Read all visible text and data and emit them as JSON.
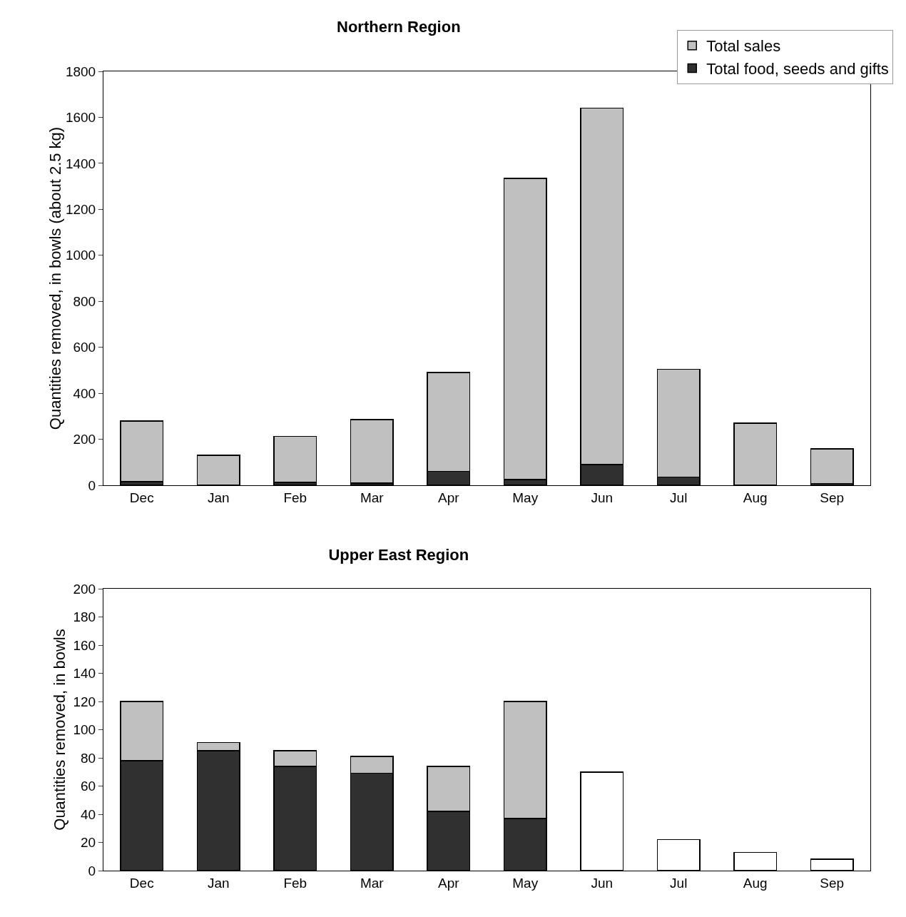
{
  "chart_data": [
    {
      "type": "bar",
      "title": "Northern Region",
      "ylabel": "Quantities removed, in bowls (about 2.5 kg)",
      "categories": [
        "Dec",
        "Jan",
        "Feb",
        "Mar",
        "Apr",
        "May",
        "Jun",
        "Jul",
        "Aug",
        "Sep"
      ],
      "stacked": true,
      "series": [
        {
          "name": "Total food, seeds and gifts",
          "color": "#303030",
          "values": [
            15,
            0,
            12,
            10,
            60,
            25,
            90,
            35,
            0,
            8
          ]
        },
        {
          "name": "Total sales",
          "color": "#c0c0c0",
          "values": [
            265,
            130,
            200,
            275,
            430,
            1310,
            1550,
            470,
            270,
            150
          ]
        }
      ],
      "ylim": [
        0,
        1800
      ],
      "yticks": [
        0,
        200,
        400,
        600,
        800,
        1000,
        1200,
        1400,
        1600,
        1800
      ],
      "grid": false,
      "legend": "top right"
    },
    {
      "type": "bar",
      "title": "Upper East Region",
      "ylabel": "Quantities removed, in bowls",
      "categories": [
        "Dec",
        "Jan",
        "Feb",
        "Mar",
        "Apr",
        "May",
        "Jun",
        "Jul",
        "Aug",
        "Sep"
      ],
      "stacked": true,
      "series": [
        {
          "color": "#303030",
          "values": [
            78,
            85,
            74,
            69,
            42,
            37,
            null,
            null,
            null,
            null
          ]
        },
        {
          "color": "#c0c0c0",
          "values": [
            42,
            6,
            11,
            12,
            32,
            83,
            null,
            null,
            null,
            null
          ]
        },
        {
          "color": "#ffffff",
          "values": [
            null,
            null,
            null,
            null,
            null,
            null,
            70,
            22,
            13,
            8
          ]
        }
      ],
      "ylim": [
        0,
        200
      ],
      "yticks": [
        0,
        20,
        40,
        60,
        80,
        100,
        120,
        140,
        160,
        180,
        200
      ],
      "grid": false,
      "legend": false
    }
  ]
}
